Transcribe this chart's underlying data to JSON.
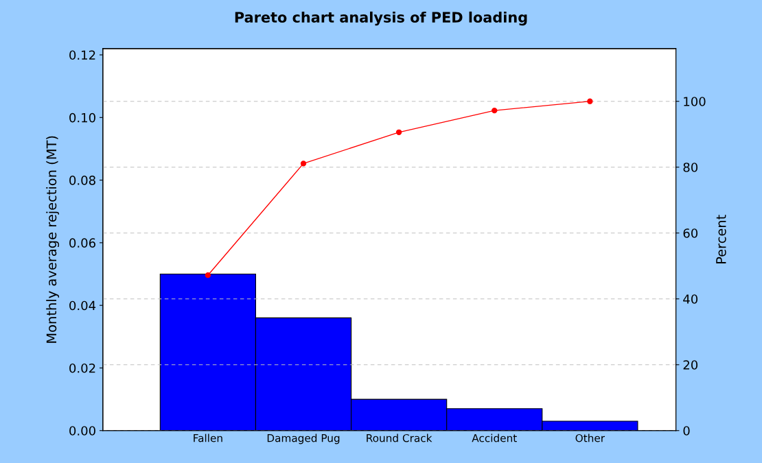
{
  "chart_data": {
    "type": "bar",
    "title": "Pareto chart analysis of PED loading",
    "ylabel": "Monthly average rejection (MT)",
    "y2label": "Percent",
    "categories": [
      "Fallen",
      "Damaged Pug",
      "Round Crack",
      "Accident",
      "Other"
    ],
    "series": [
      {
        "color": "#0000ff",
        "values": [
          0.05,
          0.036,
          0.01,
          0.007,
          0.003
        ]
      },
      {
        "type": "line",
        "axis": "y2",
        "color": "#ff0000",
        "marker": "circle",
        "values": [
          47.2,
          81.1,
          90.6,
          97.2,
          100
        ]
      }
    ],
    "ylim": [
      0,
      0.122
    ],
    "yticks": [
      {
        "value": 0,
        "label": "0.00"
      },
      {
        "value": 0.02,
        "label": "0.02"
      },
      {
        "value": 0.04,
        "label": "0.04"
      },
      {
        "value": 0.06,
        "label": "0.06"
      },
      {
        "value": 0.08,
        "label": "0.08"
      },
      {
        "value": 0.1,
        "label": "0.10"
      },
      {
        "value": 0.12,
        "label": "0.12"
      }
    ],
    "y2lim": [
      0,
      116
    ],
    "y2ticks": [
      0,
      20,
      40,
      60,
      80,
      100
    ],
    "grid": "y"
  }
}
